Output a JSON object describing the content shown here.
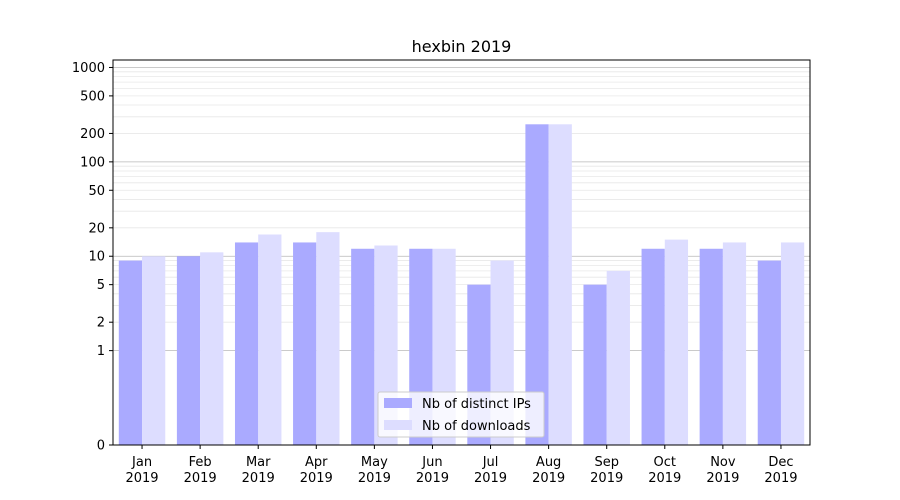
{
  "chart_data": {
    "type": "bar",
    "title": "hexbin 2019",
    "xlabel": "",
    "ylabel": "",
    "yscale": "symlog",
    "ylim": [
      0,
      1200
    ],
    "yticks": [
      0,
      1,
      2,
      5,
      10,
      20,
      50,
      100,
      200,
      500,
      1000
    ],
    "categories": [
      [
        "Jan",
        "2019"
      ],
      [
        "Feb",
        "2019"
      ],
      [
        "Mar",
        "2019"
      ],
      [
        "Apr",
        "2019"
      ],
      [
        "May",
        "2019"
      ],
      [
        "Jun",
        "2019"
      ],
      [
        "Jul",
        "2019"
      ],
      [
        "Aug",
        "2019"
      ],
      [
        "Sep",
        "2019"
      ],
      [
        "Oct",
        "2019"
      ],
      [
        "Nov",
        "2019"
      ],
      [
        "Dec",
        "2019"
      ]
    ],
    "series": [
      {
        "name": "Nb of distinct IPs",
        "color": "#aaaaff",
        "values": [
          9,
          10,
          14,
          14,
          12,
          12,
          5,
          250,
          5,
          12,
          12,
          9
        ]
      },
      {
        "name": "Nb of downloads",
        "color": "#ddddff",
        "values": [
          10,
          11,
          17,
          18,
          13,
          12,
          9,
          250,
          7,
          15,
          14,
          14
        ]
      }
    ],
    "legend_position": "lower-center",
    "grid": true
  }
}
